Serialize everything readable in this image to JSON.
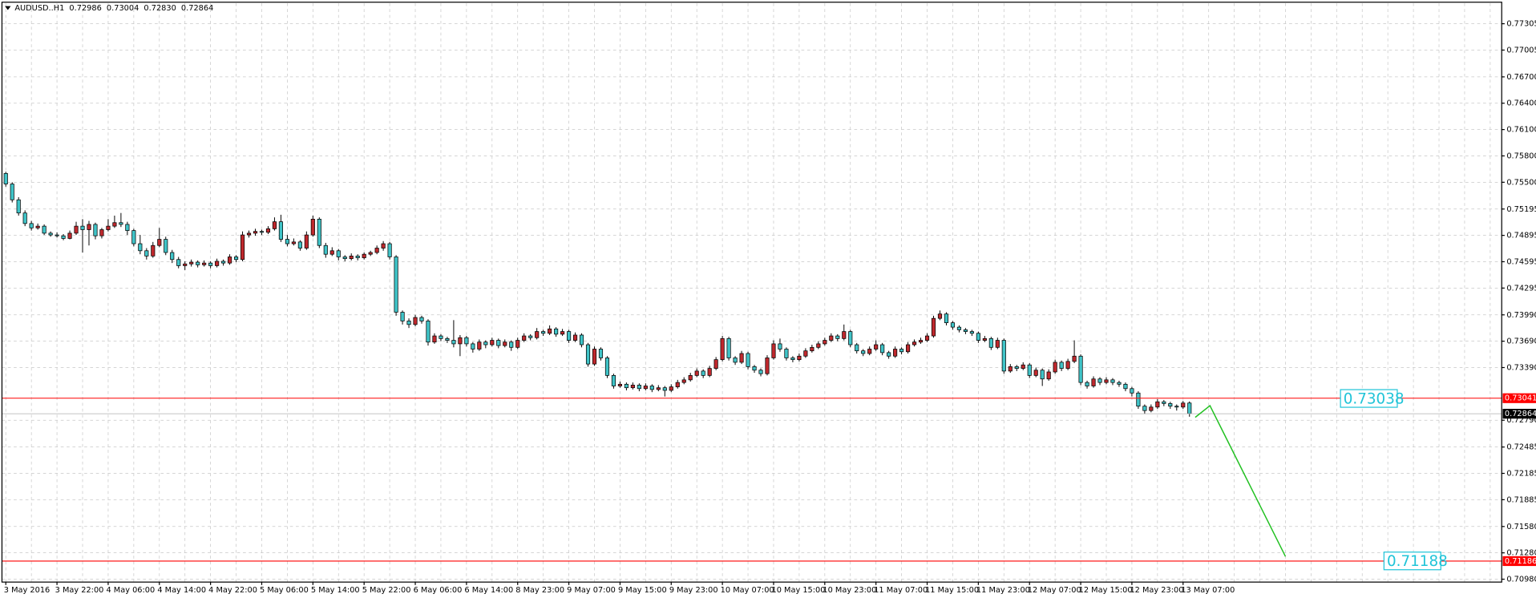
{
  "chart_data": {
    "type": "candlestick",
    "title": "AUDUSD..H1",
    "title_values": [
      "0.72986",
      "0.73004",
      "0.72830",
      "0.72864"
    ],
    "up_color": "#c0282d",
    "down_color": "#40c4c8",
    "wick_color": "#000000",
    "grid": true,
    "xlim": [
      -0.6,
      233.8
    ],
    "ylim": [
      0.70947,
      0.77539
    ],
    "yticks": [
      {
        "value": 0.77305,
        "label": "0.77305"
      },
      {
        "value": 0.77005,
        "label": "0.77005"
      },
      {
        "value": 0.767,
        "label": "0.76700"
      },
      {
        "value": 0.764,
        "label": "0.76400"
      },
      {
        "value": 0.761,
        "label": "0.76100"
      },
      {
        "value": 0.758,
        "label": "0.75800"
      },
      {
        "value": 0.755,
        "label": "0.75500"
      },
      {
        "value": 0.75195,
        "label": "0.75195"
      },
      {
        "value": 0.74895,
        "label": "0.74895"
      },
      {
        "value": 0.74595,
        "label": "0.74595"
      },
      {
        "value": 0.74295,
        "label": "0.74295"
      },
      {
        "value": 0.7399,
        "label": "0.73990"
      },
      {
        "value": 0.7369,
        "label": "0.73690"
      },
      {
        "value": 0.7339,
        "label": "0.73390"
      },
      {
        "value": 0.7279,
        "label": "0.72790"
      },
      {
        "value": 0.72485,
        "label": "0.72485"
      },
      {
        "value": 0.72185,
        "label": "0.72185"
      },
      {
        "value": 0.71885,
        "label": "0.71885"
      },
      {
        "value": 0.7158,
        "label": "0.71580"
      },
      {
        "value": 0.7128,
        "label": "0.71280"
      },
      {
        "value": 0.7098,
        "label": "0.70980"
      }
    ],
    "categories": [
      "3 May 2016",
      null,
      null,
      null,
      null,
      null,
      null,
      null,
      "3 May 22:00",
      null,
      null,
      null,
      null,
      null,
      null,
      null,
      "4 May 06:00",
      null,
      null,
      null,
      null,
      null,
      null,
      null,
      "4 May 14:00",
      null,
      null,
      null,
      null,
      null,
      null,
      null,
      "4 May 22:00",
      null,
      null,
      null,
      null,
      null,
      null,
      null,
      "5 May 06:00",
      null,
      null,
      null,
      null,
      null,
      null,
      null,
      "5 May 14:00",
      null,
      null,
      null,
      null,
      null,
      null,
      null,
      "5 May 22:00",
      null,
      null,
      null,
      null,
      null,
      null,
      null,
      "6 May 06:00",
      null,
      null,
      null,
      null,
      null,
      null,
      null,
      "6 May 14:00",
      null,
      null,
      null,
      null,
      null,
      null,
      null,
      "8 May 23:00",
      null,
      null,
      null,
      null,
      null,
      null,
      null,
      "9 May 07:00",
      null,
      null,
      null,
      null,
      null,
      null,
      null,
      "9 May 15:00",
      null,
      null,
      null,
      null,
      null,
      null,
      null,
      "9 May 23:00",
      null,
      null,
      null,
      null,
      null,
      null,
      null,
      "10 May 07:00",
      null,
      null,
      null,
      null,
      null,
      null,
      null,
      "10 May 15:00",
      null,
      null,
      null,
      null,
      null,
      null,
      null,
      "10 May 23:00",
      null,
      null,
      null,
      null,
      null,
      null,
      null,
      "11 May 07:00",
      null,
      null,
      null,
      null,
      null,
      null,
      null,
      "11 May 15:00",
      null,
      null,
      null,
      null,
      null,
      null,
      null,
      "11 May 23:00",
      null,
      null,
      null,
      null,
      null,
      null,
      null,
      "12 May 07:00",
      null,
      null,
      null,
      null,
      null,
      null,
      null,
      "12 May 15:00",
      null,
      null,
      null,
      null,
      null,
      null,
      null,
      "12 May 23:00",
      null,
      null,
      null,
      null,
      null,
      null,
      null,
      "13 May 07:00",
      null
    ],
    "ohlc": [
      [
        0.756,
        0.7562,
        0.7545,
        0.7548
      ],
      [
        0.7548,
        0.755,
        0.7527,
        0.753
      ],
      [
        0.753,
        0.7533,
        0.7512,
        0.7515
      ],
      [
        0.7515,
        0.7518,
        0.75,
        0.7503
      ],
      [
        0.7503,
        0.7506,
        0.7495,
        0.7498
      ],
      [
        0.7498,
        0.7503,
        0.7496,
        0.75
      ],
      [
        0.75,
        0.7502,
        0.749,
        0.7492
      ],
      [
        0.7492,
        0.7494,
        0.7488,
        0.749
      ],
      [
        0.749,
        0.7493,
        0.7487,
        0.7489
      ],
      [
        0.7489,
        0.7491,
        0.7484,
        0.7486
      ],
      [
        0.7486,
        0.7495,
        0.7485,
        0.7492
      ],
      [
        0.7492,
        0.7505,
        0.749,
        0.75
      ],
      [
        0.75,
        0.7508,
        0.747,
        0.7496
      ],
      [
        0.7496,
        0.7506,
        0.7478,
        0.7502
      ],
      [
        0.7502,
        0.7504,
        0.7485,
        0.7489
      ],
      [
        0.7489,
        0.7498,
        0.7486,
        0.7496
      ],
      [
        0.7496,
        0.7508,
        0.7494,
        0.75
      ],
      [
        0.75,
        0.7512,
        0.7498,
        0.7504
      ],
      [
        0.7504,
        0.7515,
        0.7499,
        0.7502
      ],
      [
        0.7502,
        0.7505,
        0.749,
        0.7495
      ],
      [
        0.7495,
        0.7497,
        0.7477,
        0.748
      ],
      [
        0.748,
        0.749,
        0.7468,
        0.7472
      ],
      [
        0.7472,
        0.7475,
        0.7462,
        0.7466
      ],
      [
        0.7466,
        0.7482,
        0.7464,
        0.7478
      ],
      [
        0.7478,
        0.7498,
        0.7476,
        0.7485
      ],
      [
        0.7485,
        0.7488,
        0.7467,
        0.747
      ],
      [
        0.747,
        0.7473,
        0.7458,
        0.7462
      ],
      [
        0.7462,
        0.7465,
        0.7452,
        0.7455
      ],
      [
        0.7455,
        0.746,
        0.745,
        0.7457
      ],
      [
        0.7457,
        0.7462,
        0.7454,
        0.7459
      ],
      [
        0.7459,
        0.7461,
        0.7453,
        0.7456
      ],
      [
        0.7456,
        0.7461,
        0.7454,
        0.7458
      ],
      [
        0.7458,
        0.746,
        0.7452,
        0.7455
      ],
      [
        0.7455,
        0.7463,
        0.7453,
        0.746
      ],
      [
        0.746,
        0.7462,
        0.7455,
        0.7458
      ],
      [
        0.7458,
        0.7468,
        0.7456,
        0.7465
      ],
      [
        0.7465,
        0.7467,
        0.7459,
        0.7462
      ],
      [
        0.7462,
        0.7494,
        0.746,
        0.749
      ],
      [
        0.749,
        0.7495,
        0.7487,
        0.7492
      ],
      [
        0.7492,
        0.7497,
        0.7489,
        0.7494
      ],
      [
        0.7494,
        0.7496,
        0.749,
        0.7493
      ],
      [
        0.7493,
        0.75,
        0.7491,
        0.7497
      ],
      [
        0.7497,
        0.751,
        0.7495,
        0.7505
      ],
      [
        0.7505,
        0.7513,
        0.7482,
        0.7485
      ],
      [
        0.7485,
        0.749,
        0.7477,
        0.748
      ],
      [
        0.748,
        0.7486,
        0.7478,
        0.7482
      ],
      [
        0.7482,
        0.7484,
        0.7472,
        0.7475
      ],
      [
        0.7475,
        0.7494,
        0.7473,
        0.749
      ],
      [
        0.749,
        0.7512,
        0.7488,
        0.7508
      ],
      [
        0.7508,
        0.751,
        0.7475,
        0.7478
      ],
      [
        0.7478,
        0.7481,
        0.7464,
        0.7468
      ],
      [
        0.7468,
        0.7476,
        0.7466,
        0.7472
      ],
      [
        0.7472,
        0.7474,
        0.7461,
        0.7465
      ],
      [
        0.7465,
        0.7467,
        0.746,
        0.7463
      ],
      [
        0.7463,
        0.7469,
        0.7461,
        0.7466
      ],
      [
        0.7466,
        0.7468,
        0.7461,
        0.7464
      ],
      [
        0.7464,
        0.747,
        0.7462,
        0.7468
      ],
      [
        0.7468,
        0.7472,
        0.7466,
        0.747
      ],
      [
        0.747,
        0.7478,
        0.7468,
        0.7475
      ],
      [
        0.7475,
        0.7483,
        0.7472,
        0.748
      ],
      [
        0.748,
        0.7482,
        0.7462,
        0.7465
      ],
      [
        0.7465,
        0.7467,
        0.7398,
        0.7402
      ],
      [
        0.7402,
        0.7404,
        0.7388,
        0.7392
      ],
      [
        0.7392,
        0.7395,
        0.7384,
        0.7388
      ],
      [
        0.7388,
        0.7399,
        0.7386,
        0.7396
      ],
      [
        0.7396,
        0.7398,
        0.7389,
        0.7392
      ],
      [
        0.7392,
        0.7394,
        0.7364,
        0.7368
      ],
      [
        0.7368,
        0.7378,
        0.7366,
        0.7375
      ],
      [
        0.7375,
        0.7377,
        0.7369,
        0.7372
      ],
      [
        0.7372,
        0.7374,
        0.7367,
        0.737
      ],
      [
        0.737,
        0.7393,
        0.7362,
        0.7366
      ],
      [
        0.7366,
        0.7376,
        0.7352,
        0.7373
      ],
      [
        0.7373,
        0.7375,
        0.7363,
        0.7366
      ],
      [
        0.7366,
        0.7368,
        0.7356,
        0.736
      ],
      [
        0.736,
        0.7371,
        0.7358,
        0.7368
      ],
      [
        0.7368,
        0.737,
        0.7361,
        0.7365
      ],
      [
        0.7365,
        0.7373,
        0.7363,
        0.737
      ],
      [
        0.737,
        0.7372,
        0.7361,
        0.7364
      ],
      [
        0.7364,
        0.7371,
        0.7362,
        0.7368
      ],
      [
        0.7368,
        0.737,
        0.7358,
        0.7362
      ],
      [
        0.7362,
        0.7373,
        0.736,
        0.737
      ],
      [
        0.737,
        0.7378,
        0.7368,
        0.7375
      ],
      [
        0.7375,
        0.7377,
        0.737,
        0.7373
      ],
      [
        0.7373,
        0.7384,
        0.7371,
        0.738
      ],
      [
        0.738,
        0.7382,
        0.7375,
        0.7378
      ],
      [
        0.7378,
        0.7387,
        0.7376,
        0.7383
      ],
      [
        0.7383,
        0.7385,
        0.7374,
        0.7377
      ],
      [
        0.7377,
        0.7383,
        0.7375,
        0.738
      ],
      [
        0.738,
        0.7382,
        0.7367,
        0.737
      ],
      [
        0.737,
        0.7379,
        0.7368,
        0.7376
      ],
      [
        0.7376,
        0.7378,
        0.7362,
        0.7365
      ],
      [
        0.7365,
        0.7367,
        0.734,
        0.7343
      ],
      [
        0.7343,
        0.7363,
        0.7341,
        0.736
      ],
      [
        0.736,
        0.7362,
        0.7347,
        0.735
      ],
      [
        0.735,
        0.7352,
        0.7327,
        0.733
      ],
      [
        0.733,
        0.7332,
        0.7315,
        0.7318
      ],
      [
        0.7318,
        0.7323,
        0.7316,
        0.732
      ],
      [
        0.732,
        0.7322,
        0.7313,
        0.7316
      ],
      [
        0.7316,
        0.7322,
        0.7314,
        0.7319
      ],
      [
        0.7319,
        0.7321,
        0.7312,
        0.7315
      ],
      [
        0.7315,
        0.7321,
        0.7313,
        0.7318
      ],
      [
        0.7318,
        0.732,
        0.7311,
        0.7314
      ],
      [
        0.7314,
        0.7319,
        0.7312,
        0.7316
      ],
      [
        0.7316,
        0.7318,
        0.7306,
        0.7313
      ],
      [
        0.7313,
        0.732,
        0.7311,
        0.7317
      ],
      [
        0.7317,
        0.7325,
        0.7315,
        0.7322
      ],
      [
        0.7322,
        0.7328,
        0.732,
        0.7325
      ],
      [
        0.7325,
        0.7333,
        0.7323,
        0.733
      ],
      [
        0.733,
        0.7338,
        0.7328,
        0.7335
      ],
      [
        0.7335,
        0.7337,
        0.7327,
        0.733
      ],
      [
        0.733,
        0.7341,
        0.7328,
        0.7338
      ],
      [
        0.7338,
        0.7351,
        0.7336,
        0.7348
      ],
      [
        0.7348,
        0.7375,
        0.7346,
        0.7372
      ],
      [
        0.7372,
        0.7374,
        0.7347,
        0.735
      ],
      [
        0.735,
        0.7352,
        0.7342,
        0.7345
      ],
      [
        0.7345,
        0.7358,
        0.7343,
        0.7355
      ],
      [
        0.7355,
        0.7357,
        0.7337,
        0.734
      ],
      [
        0.734,
        0.7342,
        0.7333,
        0.7336
      ],
      [
        0.7336,
        0.7338,
        0.7329,
        0.7332
      ],
      [
        0.7332,
        0.7353,
        0.733,
        0.735
      ],
      [
        0.735,
        0.737,
        0.7348,
        0.7366
      ],
      [
        0.7366,
        0.7372,
        0.7357,
        0.736
      ],
      [
        0.736,
        0.7362,
        0.7347,
        0.735
      ],
      [
        0.735,
        0.7352,
        0.7345,
        0.7348
      ],
      [
        0.7348,
        0.7355,
        0.7346,
        0.7352
      ],
      [
        0.7352,
        0.7361,
        0.735,
        0.7358
      ],
      [
        0.7358,
        0.7365,
        0.7356,
        0.7362
      ],
      [
        0.7362,
        0.7369,
        0.736,
        0.7366
      ],
      [
        0.7366,
        0.7373,
        0.7364,
        0.737
      ],
      [
        0.737,
        0.7378,
        0.7368,
        0.7375
      ],
      [
        0.7375,
        0.7377,
        0.7369,
        0.7372
      ],
      [
        0.7372,
        0.7388,
        0.737,
        0.738
      ],
      [
        0.738,
        0.7382,
        0.7362,
        0.7365
      ],
      [
        0.7365,
        0.7367,
        0.7355,
        0.7358
      ],
      [
        0.7358,
        0.736,
        0.7352,
        0.7355
      ],
      [
        0.7355,
        0.7363,
        0.7353,
        0.736
      ],
      [
        0.736,
        0.737,
        0.7358,
        0.7365
      ],
      [
        0.7365,
        0.7367,
        0.7353,
        0.7356
      ],
      [
        0.7356,
        0.7358,
        0.7349,
        0.7352
      ],
      [
        0.7352,
        0.7363,
        0.735,
        0.736
      ],
      [
        0.736,
        0.7362,
        0.7354,
        0.7357
      ],
      [
        0.7357,
        0.7368,
        0.7355,
        0.7365
      ],
      [
        0.7365,
        0.7371,
        0.7363,
        0.7368
      ],
      [
        0.7368,
        0.7373,
        0.7366,
        0.737
      ],
      [
        0.737,
        0.7378,
        0.7368,
        0.7375
      ],
      [
        0.7375,
        0.7398,
        0.7373,
        0.7395
      ],
      [
        0.7395,
        0.7404,
        0.7393,
        0.74
      ],
      [
        0.74,
        0.7402,
        0.7387,
        0.739
      ],
      [
        0.739,
        0.7392,
        0.7382,
        0.7385
      ],
      [
        0.7385,
        0.7387,
        0.7379,
        0.7382
      ],
      [
        0.7382,
        0.7384,
        0.7377,
        0.738
      ],
      [
        0.738,
        0.7382,
        0.7375,
        0.7378
      ],
      [
        0.7378,
        0.738,
        0.7367,
        0.737
      ],
      [
        0.737,
        0.7375,
        0.7368,
        0.7372
      ],
      [
        0.7372,
        0.7374,
        0.7359,
        0.7362
      ],
      [
        0.7362,
        0.7373,
        0.736,
        0.737
      ],
      [
        0.737,
        0.7372,
        0.7332,
        0.7335
      ],
      [
        0.7335,
        0.7343,
        0.7333,
        0.734
      ],
      [
        0.734,
        0.7342,
        0.7335,
        0.7338
      ],
      [
        0.7338,
        0.7345,
        0.7336,
        0.7342
      ],
      [
        0.7342,
        0.7344,
        0.7327,
        0.733
      ],
      [
        0.733,
        0.7339,
        0.7328,
        0.7336
      ],
      [
        0.7336,
        0.7338,
        0.7318,
        0.7326
      ],
      [
        0.7326,
        0.7337,
        0.7324,
        0.7334
      ],
      [
        0.7334,
        0.7348,
        0.7332,
        0.7345
      ],
      [
        0.7345,
        0.7347,
        0.7335,
        0.7338
      ],
      [
        0.7338,
        0.7349,
        0.7336,
        0.7346
      ],
      [
        0.7346,
        0.737,
        0.7344,
        0.7352
      ],
      [
        0.7352,
        0.7354,
        0.7319,
        0.7322
      ],
      [
        0.7322,
        0.7324,
        0.7315,
        0.7318
      ],
      [
        0.7318,
        0.7329,
        0.7316,
        0.7326
      ],
      [
        0.7326,
        0.7328,
        0.7319,
        0.7322
      ],
      [
        0.7322,
        0.7328,
        0.732,
        0.7325
      ],
      [
        0.7325,
        0.7327,
        0.7319,
        0.7322
      ],
      [
        0.7322,
        0.7324,
        0.7317,
        0.732
      ],
      [
        0.732,
        0.7322,
        0.7312,
        0.7315
      ],
      [
        0.7315,
        0.7317,
        0.7306,
        0.731
      ],
      [
        0.731,
        0.7312,
        0.7292,
        0.7295
      ],
      [
        0.7295,
        0.7297,
        0.7286,
        0.729
      ],
      [
        0.729,
        0.7297,
        0.7288,
        0.7294
      ],
      [
        0.7294,
        0.7303,
        0.7292,
        0.73
      ],
      [
        0.73,
        0.7302,
        0.7295,
        0.7298
      ],
      [
        0.7298,
        0.73,
        0.7292,
        0.7295
      ],
      [
        0.7295,
        0.7297,
        0.729,
        0.7294
      ],
      [
        0.7294,
        0.7301,
        0.7292,
        0.72986
      ],
      [
        0.72986,
        0.73004,
        0.7283,
        0.72864
      ]
    ],
    "hlines": [
      {
        "value": 0.73041,
        "color": "#ff0000"
      },
      {
        "value": 0.71186,
        "color": "#ff0000"
      }
    ],
    "text_labels": [
      {
        "label": "0.73038",
        "value": 0.73038,
        "x": 208.6,
        "color": "#20c4d8"
      },
      {
        "label": "0.71188",
        "value": 0.71188,
        "x": 215.4,
        "color": "#20c4d8"
      }
    ],
    "forecast_line": {
      "color": "#20c020",
      "x": [
        185.9,
        188.2,
        200.0
      ],
      "values": [
        0.72823,
        0.72956,
        0.71239
      ]
    }
  }
}
